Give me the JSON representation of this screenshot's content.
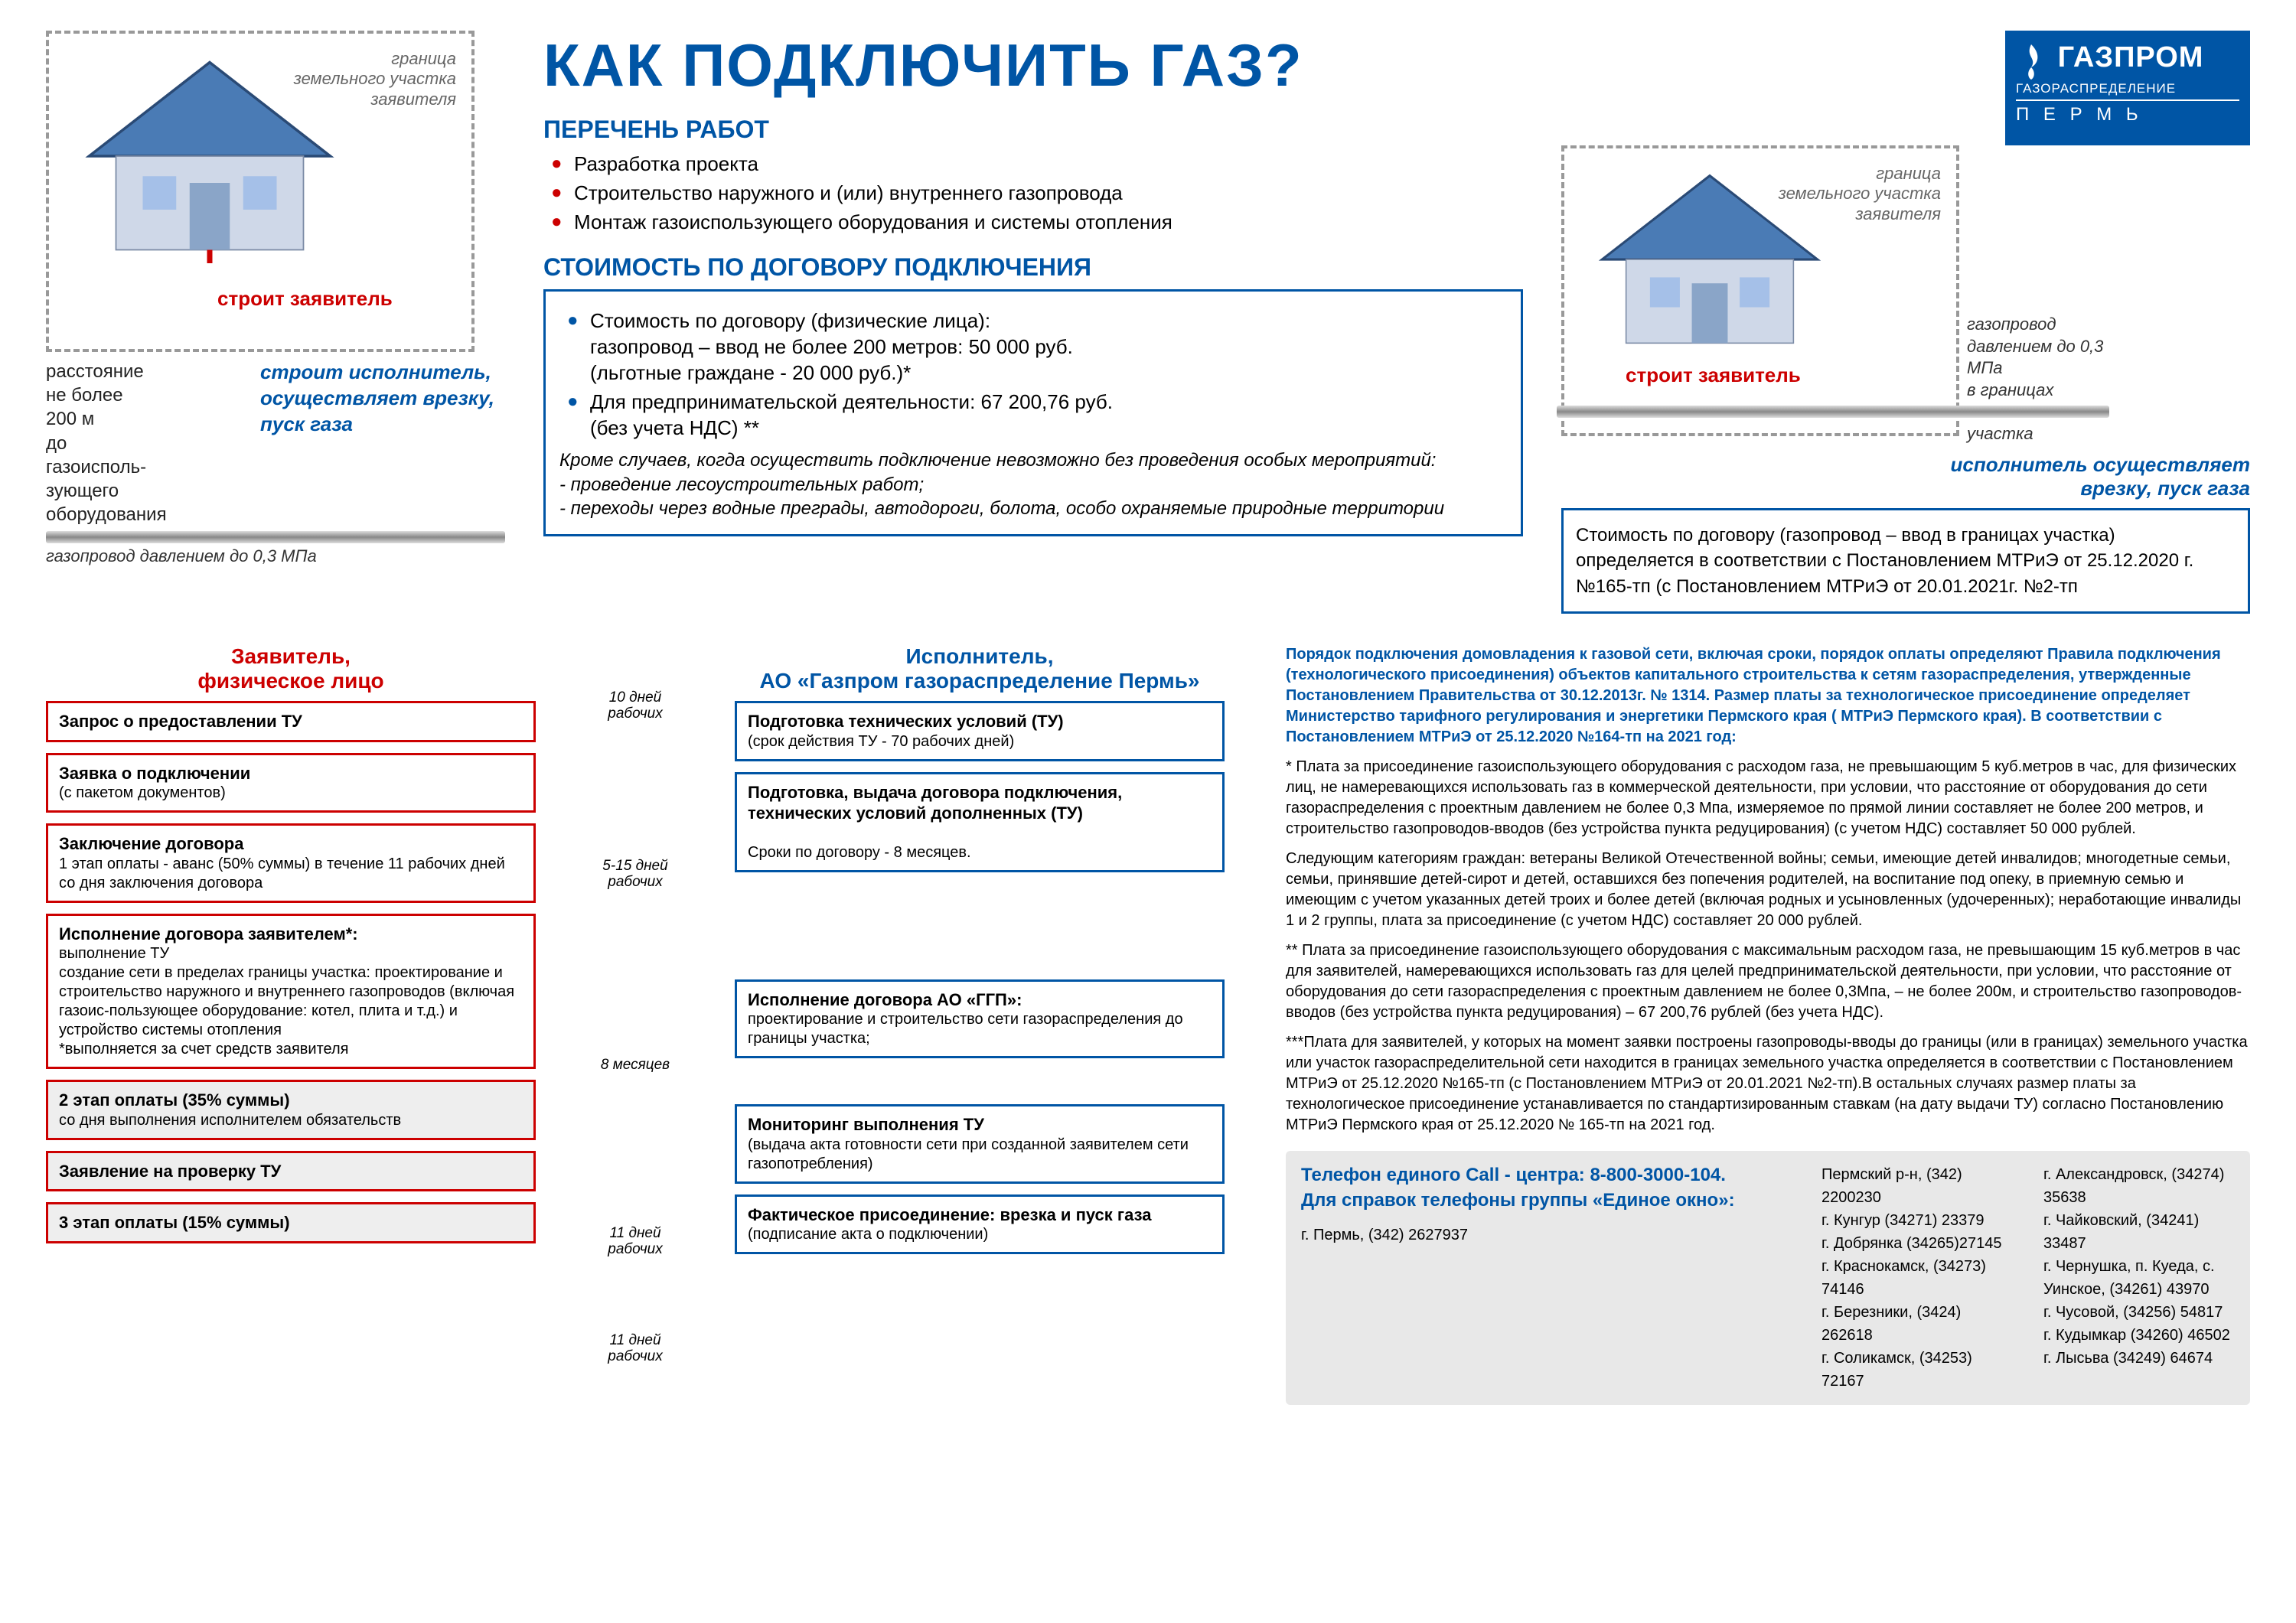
{
  "colors": {
    "brand_blue": "#0055a5",
    "accent_red": "#c00000",
    "grey_border": "#999999",
    "bg_grey": "#e8e8e8",
    "text": "#000000"
  },
  "title": "КАК ПОДКЛЮЧИТЬ ГАЗ?",
  "logo": {
    "main": "ГАЗПРОМ",
    "sub1": "ГАЗОРАСПРЕДЕЛЕНИЕ",
    "sub2": "П Е Р М Ь"
  },
  "left_house": {
    "boundary": "граница\nземельного участка\nзаявителя",
    "build": "строит  заявитель",
    "under_left": "расстояние\nне более\n200 м\nдо\nгазоисполь-\nзующего\nоборудования",
    "under_right": "строит  исполнитель,\nосуществляет врезку,\nпуск газа",
    "pipe": "газопровод давлением до 0,3 МПа"
  },
  "works": {
    "head": "ПЕРЕЧЕНЬ РАБОТ",
    "items": [
      "Разработка проекта",
      "Строительство наружного и (или) внутреннего газопровода",
      "Монтаж газоиспользующего оборудования и системы отопления"
    ]
  },
  "cost": {
    "head": "СТОИМОСТЬ ПО ДОГОВОРУ ПОДКЛЮЧЕНИЯ",
    "li1": "Стоимость  по договору (физические лица):\nгазопровод – ввод не более 200 метров: 50 000 руб.\n(льготные граждане -  20 000 руб.)*",
    "li2": "Для предпринимательской деятельности: 67 200,76 руб.\n(без учета НДС) **",
    "note": "Кроме случаев, когда осуществить подключение невозможно без проведения особых мероприятий:\n- проведение лесоустроительных работ;\n- переходы через водные преграды, автодороги, болота, особо охраняемые природные территории"
  },
  "right_house": {
    "boundary": "граница\nземельного участка\nзаявителя",
    "build": "строит  заявитель",
    "pipe_side": "газопровод\nдавлением до 0,3 МПа\nв границах земельного\nучастка",
    "exec": "исполнитель осуществляет\nврезку, пуск газа",
    "box": "Стоимость  по договору (газопровод – ввод в границах участка) определяется в соответствии с Постановлением МТРиЭ от 25.12.2020 г. №165-тп (с Постановлением МТРиЭ от 20.01.2021г. №2-тп"
  },
  "flow_left_head": "Заявитель,\nфизическое лицо",
  "flow_right_head": "Исполнитель,\nАО «Газпром газораспределение Пермь»",
  "flow_left": [
    {
      "t": "Запрос о предоставлении ТУ",
      "s": ""
    },
    {
      "t": "Заявка о подключении",
      "s": "(с пакетом документов)"
    },
    {
      "t": "Заключение договора",
      "s": "1 этап оплаты - аванс (50% суммы) в течение 11 рабочих дней со дня заключения договора"
    },
    {
      "t": "Исполнение договора заявителем*:",
      "s": "выполнение ТУ\nсоздание сети в пределах границы участка: проектирование и строительство наружного и внутреннего газопроводов (включая газоис-пользующее оборудование: котел, плита и т.д.) и устройство системы отопления\n*выполняется за счет средств заявителя"
    },
    {
      "t": "2 этап оплаты (35% суммы)",
      "s": "со дня выполнения исполнителем обязательств",
      "dark": true
    },
    {
      "t": "Заявление на проверку ТУ",
      "s": "",
      "dark": true
    },
    {
      "t": "3 этап оплаты (15% суммы)",
      "s": "",
      "dark": true
    }
  ],
  "flow_right": [
    {
      "t": "Подготовка технических условий  (ТУ)",
      "s": "(срок действия ТУ - 70 рабочих дней)"
    },
    {
      "t": "Подготовка, выдача договора подключения, технических условий дополненных (ТУ)",
      "s": "\nСроки по договору - 8 месяцев."
    },
    {
      "t": "Исполнение договора АО «ГГП»:",
      "s": "проектирование и строительство сети газораспределения до границы участка;"
    },
    {
      "t": "Мониторинг выполнения ТУ",
      "s": "(выдача акта готовности сети при созданной заявителем сети газопотребления)"
    },
    {
      "t": "Фактическое присоединение: врезка и пуск газа",
      "s": "(подписание акта о подключении)"
    }
  ],
  "mid": [
    "10 дней\nрабочих",
    "5-15 дней\nрабочих",
    "8 месяцев",
    "11 дней\nрабочих",
    "11 дней\nрабочих"
  ],
  "legal": {
    "p1": "Порядок подключения домовладения к газовой сети, включая сроки, порядок оплаты определяют Правила подключения (технологического присоединения) объектов капитального строительства к сетям газораспределения, утвержденные Постановлением Правительства от 30.12.2013г. № 1314. Размер платы за технологическое присоединение определяет Министерство тарифного регулирования и энергетики Пермского края ( МТРиЭ Пермского края). В соответствии с Постановлением МТРиЭ от 25.12.2020   №164-тп на 2021 год:",
    "p2": "* Плата за присоединение газоиспользующего оборудования с расходом газа, не превышающим 5 куб.метров в час, для физических лиц, не намеревающихся использовать газ в коммерческой деятельности, при условии, что расстояние от оборудования до сети газораспределения с проектным давлением не более 0,3 Мпа, измеряемое по прямой линии составляет не более 200 метров, и строительство газопроводов-вводов (без устройства пункта редуцирования) (с учетом НДС) составляет 50 000 рублей.",
    "p3": "Следующим категориям граждан:  ветераны Великой Отечественной войны; семьи, имеющие детей инвалидов; многодетные семьи, семьи, принявшие детей-сирот и детей, оставшихся без попечения родителей, на воспитание под опеку, в приемную семью и имеющим с учетом указанных детей троих и более детей (включая родных и усыновленных (удочеренных); неработающие инвалиды 1 и 2 группы, плата за присоединение (с учетом НДС) составляет  20 000 рублей.",
    "p4": "** Плата за присоединение газоиспользующего оборудования с максимальным расходом газа, не превышающим 15 куб.метров в час для заявителей, намеревающихся использовать газ для целей предпринимательской деятельности, при условии, что расстояние от оборудования до сети газораспределения с проектным давлением не более 0,3Мпа, – не более 200м, и строительство газопроводов-вводов (без устройства пункта редуцирования) – 67 200,76 рублей (без учета НДС).",
    "p5": "***Плата для заявителей, у которых на момент заявки построены газопроводы-вводы до границы (или в границах) земельного участка или участок газораспределительной сети находится в границах земельного участка определяется в соответствии с Постановлением МТРиЭ от 25.12.2020 №165-тп (с Постановлением МТРиЭ от 20.01.2021 №2-тп).В остальных случаях размер платы за технологическое присоединение устанавливается по стандартизированным ставкам (на дату выдачи ТУ) согласно Постановлению МТРиЭ Пермского края от 25.12.2020 № 165-тп на 2021 год."
  },
  "footer": {
    "call": "Телефон единого Call - центра: 8-800-3000-104.",
    "info": "Для справок телефоны группы «Единое окно»:",
    "perm": "г. Пермь,          (342) 2627937",
    "col1": "Пермский р-н,   (342) 2200230\nг. Кунгур            (34271) 23379\nг. Добрянка        (34265)27145\nг. Краснокамск, (34273) 74146\nг. Березники,     (3424) 262618\nг. Соликамск,    (34253) 72167",
    "col2": "г. Александровск, (34274) 35638\nг. Чайковский,      (34241) 33487\nг. Чернушка, п. Куеда, с. Уинское,  (34261) 43970\nг. Чусовой,           (34256) 54817\nг. Кудымкар         (34260) 46502\nг. Лысьва             (34249) 64674"
  }
}
